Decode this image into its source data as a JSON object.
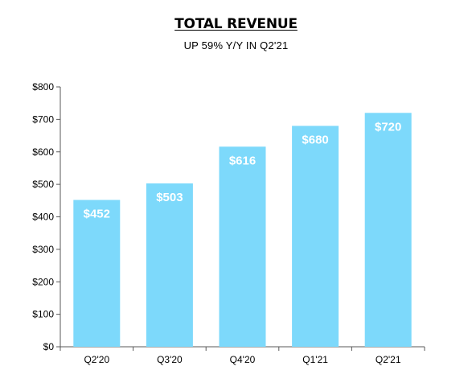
{
  "chart_data": {
    "type": "bar",
    "title": "TOTAL REVENUE",
    "subtitle": "UP 59% Y/Y IN Q2'21",
    "categories": [
      "Q2'20",
      "Q3'20",
      "Q4'20",
      "Q1'21",
      "Q2'21"
    ],
    "values": [
      452,
      503,
      616,
      680,
      720
    ],
    "data_labels": [
      "$452",
      "$503",
      "$616",
      "$680",
      "$720"
    ],
    "y_ticks": [
      {
        "value": 0,
        "label": "$0"
      },
      {
        "value": 100,
        "label": "$100"
      },
      {
        "value": 200,
        "label": "$200"
      },
      {
        "value": 300,
        "label": "$300"
      },
      {
        "value": 400,
        "label": "$400"
      },
      {
        "value": 500,
        "label": "$500"
      },
      {
        "value": 600,
        "label": "$600"
      },
      {
        "value": 700,
        "label": "$700"
      },
      {
        "value": 800,
        "label": "$800"
      }
    ],
    "ylim": [
      0,
      800
    ],
    "xlabel": "",
    "ylabel": "",
    "grid": false,
    "legend": "none",
    "bar_color": "#7DD9FB",
    "axis_color": "#595959",
    "label_color": "#FFFFFF"
  }
}
